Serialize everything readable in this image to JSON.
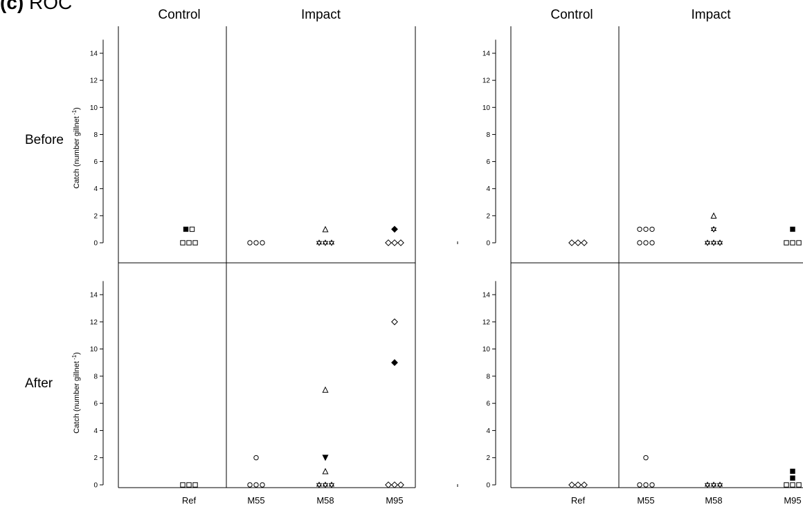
{
  "figure": {
    "panel_label": "(c)",
    "title": "ROC",
    "group_labels": [
      "Control",
      "Impact"
    ],
    "row_labels": [
      "Before",
      "After"
    ],
    "y_axis_label": "Catch (number gillnet",
    "y_axis_superscript": "-1",
    "y_axis_close": ")",
    "x_tick_labels": [
      "Ref",
      "M55",
      "M58",
      "M95"
    ],
    "y_tick_labels": [
      "0",
      "2",
      "4",
      "6",
      "8",
      "10",
      "12",
      "14"
    ]
  },
  "chart_data": [
    {
      "type": "scatter",
      "column": "left",
      "period": "Before",
      "categories": [
        "Ref",
        "M55",
        "M58",
        "M95"
      ],
      "ylim": [
        0,
        15
      ],
      "yticks": [
        0,
        2,
        4,
        6,
        8,
        10,
        12,
        14
      ],
      "points": [
        {
          "x": "Ref",
          "marker": "square-open",
          "values": [
            0,
            0,
            0
          ]
        },
        {
          "x": "Ref",
          "marker": "square-filled",
          "values": [
            1
          ]
        },
        {
          "x": "Ref",
          "marker": "square-open",
          "values": [
            1
          ]
        },
        {
          "x": "M55",
          "marker": "circle-open",
          "values": [
            0,
            0,
            0
          ]
        },
        {
          "x": "M58",
          "marker": "star-open",
          "values": [
            0,
            0,
            0
          ]
        },
        {
          "x": "M58",
          "marker": "triangle-open",
          "values": [
            1
          ]
        },
        {
          "x": "M95",
          "marker": "diamond-open",
          "values": [
            0,
            0,
            0
          ]
        },
        {
          "x": "M95",
          "marker": "diamond-filled",
          "values": [
            1
          ]
        }
      ]
    },
    {
      "type": "scatter",
      "column": "right",
      "period": "Before",
      "categories": [
        "Ref",
        "M55",
        "M58",
        "M95"
      ],
      "ylim": [
        0,
        15
      ],
      "yticks": [
        0,
        2,
        4,
        6,
        8,
        10,
        12,
        14
      ],
      "points": [
        {
          "x": "Ref",
          "marker": "diamond-open",
          "values": [
            0,
            0,
            0
          ]
        },
        {
          "x": "M55",
          "marker": "circle-open",
          "values": [
            0,
            0,
            0
          ]
        },
        {
          "x": "M55",
          "marker": "circle-open",
          "values": [
            1,
            1,
            1
          ]
        },
        {
          "x": "M58",
          "marker": "star-open",
          "values": [
            0,
            0,
            0
          ]
        },
        {
          "x": "M58",
          "marker": "star-open",
          "values": [
            1
          ]
        },
        {
          "x": "M58",
          "marker": "triangle-open",
          "values": [
            2
          ]
        },
        {
          "x": "M95",
          "marker": "square-open",
          "values": [
            0,
            0,
            0
          ]
        },
        {
          "x": "M95",
          "marker": "square-filled",
          "values": [
            1
          ]
        }
      ]
    },
    {
      "type": "scatter",
      "column": "left",
      "period": "After",
      "categories": [
        "Ref",
        "M55",
        "M58",
        "M95"
      ],
      "ylim": [
        0,
        15
      ],
      "yticks": [
        0,
        2,
        4,
        6,
        8,
        10,
        12,
        14
      ],
      "points": [
        {
          "x": "Ref",
          "marker": "square-open",
          "values": [
            0,
            0,
            0
          ]
        },
        {
          "x": "M55",
          "marker": "circle-open",
          "values": [
            0,
            0,
            0
          ]
        },
        {
          "x": "M55",
          "marker": "circle-open",
          "values": [
            2
          ]
        },
        {
          "x": "M58",
          "marker": "star-open",
          "values": [
            0,
            0,
            0
          ]
        },
        {
          "x": "M58",
          "marker": "triangle-open",
          "values": [
            1
          ]
        },
        {
          "x": "M58",
          "marker": "triangle-down-filled",
          "values": [
            2
          ]
        },
        {
          "x": "M58",
          "marker": "triangle-open",
          "values": [
            7
          ]
        },
        {
          "x": "M95",
          "marker": "diamond-open",
          "values": [
            0,
            0,
            0
          ]
        },
        {
          "x": "M95",
          "marker": "diamond-filled",
          "values": [
            9
          ]
        },
        {
          "x": "M95",
          "marker": "diamond-open",
          "values": [
            12
          ]
        }
      ]
    },
    {
      "type": "scatter",
      "column": "right",
      "period": "After",
      "categories": [
        "Ref",
        "M55",
        "M58",
        "M95"
      ],
      "ylim": [
        0,
        15
      ],
      "yticks": [
        0,
        2,
        4,
        6,
        8,
        10,
        12,
        14
      ],
      "points": [
        {
          "x": "Ref",
          "marker": "diamond-open",
          "values": [
            0,
            0,
            0
          ]
        },
        {
          "x": "M55",
          "marker": "circle-open",
          "values": [
            0,
            0,
            0
          ]
        },
        {
          "x": "M55",
          "marker": "circle-open",
          "values": [
            2
          ]
        },
        {
          "x": "M58",
          "marker": "star-open",
          "values": [
            0,
            0,
            0
          ]
        },
        {
          "x": "M95",
          "marker": "square-open",
          "values": [
            0,
            0,
            0
          ]
        },
        {
          "x": "M95",
          "marker": "square-filled",
          "values": [
            0.5
          ]
        },
        {
          "x": "M95",
          "marker": "square-filled",
          "values": [
            1
          ]
        }
      ]
    }
  ]
}
